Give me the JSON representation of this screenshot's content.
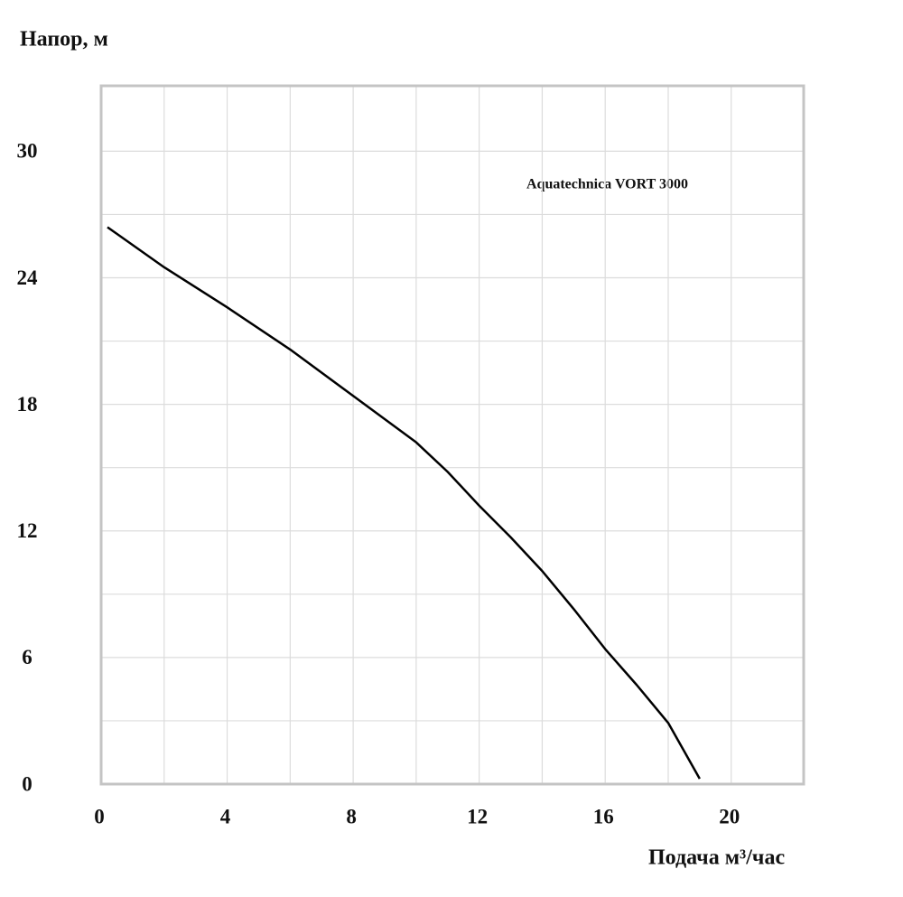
{
  "chart_data": {
    "type": "line",
    "y_axis_label": "Напор, м",
    "x_axis_label": "Подача  м³/час",
    "annotation": "Aquatechnica VORT 3000",
    "x": [
      0.2,
      2,
      4,
      6,
      8,
      10,
      11,
      12,
      13,
      14,
      15,
      16,
      17,
      18,
      19
    ],
    "series": [
      {
        "name": "Aquatechnica VORT 3000",
        "color": "#000000",
        "values": [
          26.4,
          24.5,
          22.6,
          20.6,
          18.4,
          16.2,
          14.8,
          13.2,
          11.7,
          10.1,
          8.3,
          6.4,
          4.7,
          2.9,
          0.25
        ]
      }
    ],
    "xlim": [
      0,
      22.3
    ],
    "ylim": [
      0,
      33.1
    ],
    "xticks": [
      0,
      4,
      8,
      12,
      16,
      20
    ],
    "yticks": [
      0,
      6,
      12,
      18,
      24,
      30
    ],
    "xgrid": [
      2,
      4,
      6,
      8,
      10,
      12,
      14,
      16,
      18,
      20
    ],
    "ygrid": [
      3,
      6,
      9,
      12,
      15,
      18,
      21,
      24,
      27,
      30
    ],
    "grid": true
  }
}
